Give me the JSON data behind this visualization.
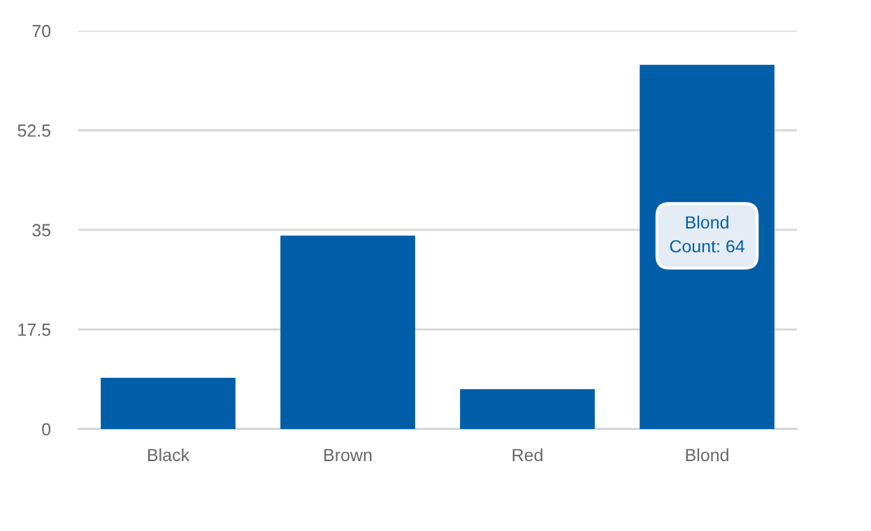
{
  "chart_data": {
    "type": "bar",
    "categories": [
      "Black",
      "Brown",
      "Red",
      "Blond"
    ],
    "values": [
      9,
      34,
      7,
      64
    ],
    "color": "#005ea8",
    "ylim": [
      0,
      70
    ],
    "yticks": [
      0,
      17.5,
      35,
      52.5,
      70
    ],
    "grid": "y",
    "annotations": [
      "Blond\nCount: 64"
    ]
  }
}
